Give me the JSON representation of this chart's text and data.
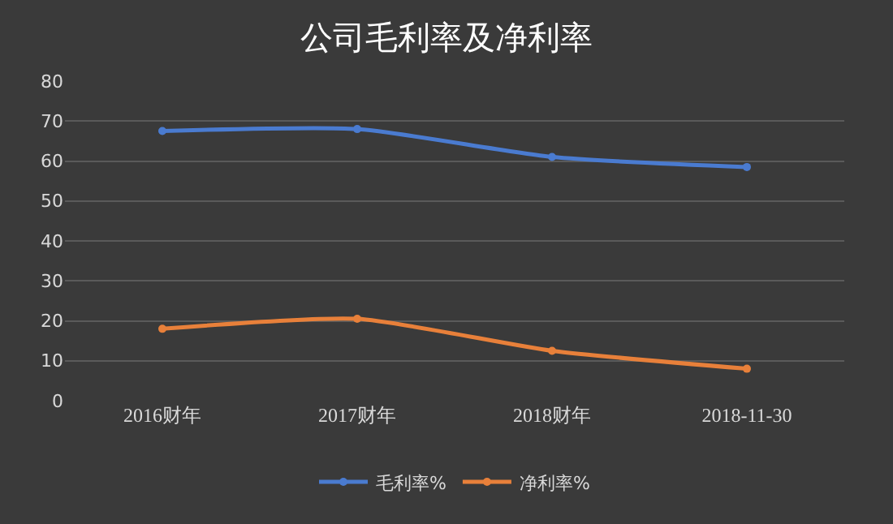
{
  "chart_data": {
    "type": "line",
    "title": "公司毛利率及净利率",
    "categories": [
      "2016财年",
      "2017财年",
      "2018财年",
      "2018-11-30"
    ],
    "series": [
      {
        "name": "毛利率%",
        "color": "#4a7bd0",
        "values": [
          67.5,
          68,
          61,
          58.5
        ]
      },
      {
        "name": "净利率%",
        "color": "#e8803a",
        "values": [
          18,
          20.5,
          12.5,
          8
        ]
      }
    ],
    "ylim": [
      0,
      80
    ],
    "yticks": [
      0,
      10,
      20,
      30,
      40,
      50,
      60,
      70,
      80
    ],
    "grid": "y",
    "legend": "bottom",
    "marker": "circle",
    "line_style": "solid"
  }
}
